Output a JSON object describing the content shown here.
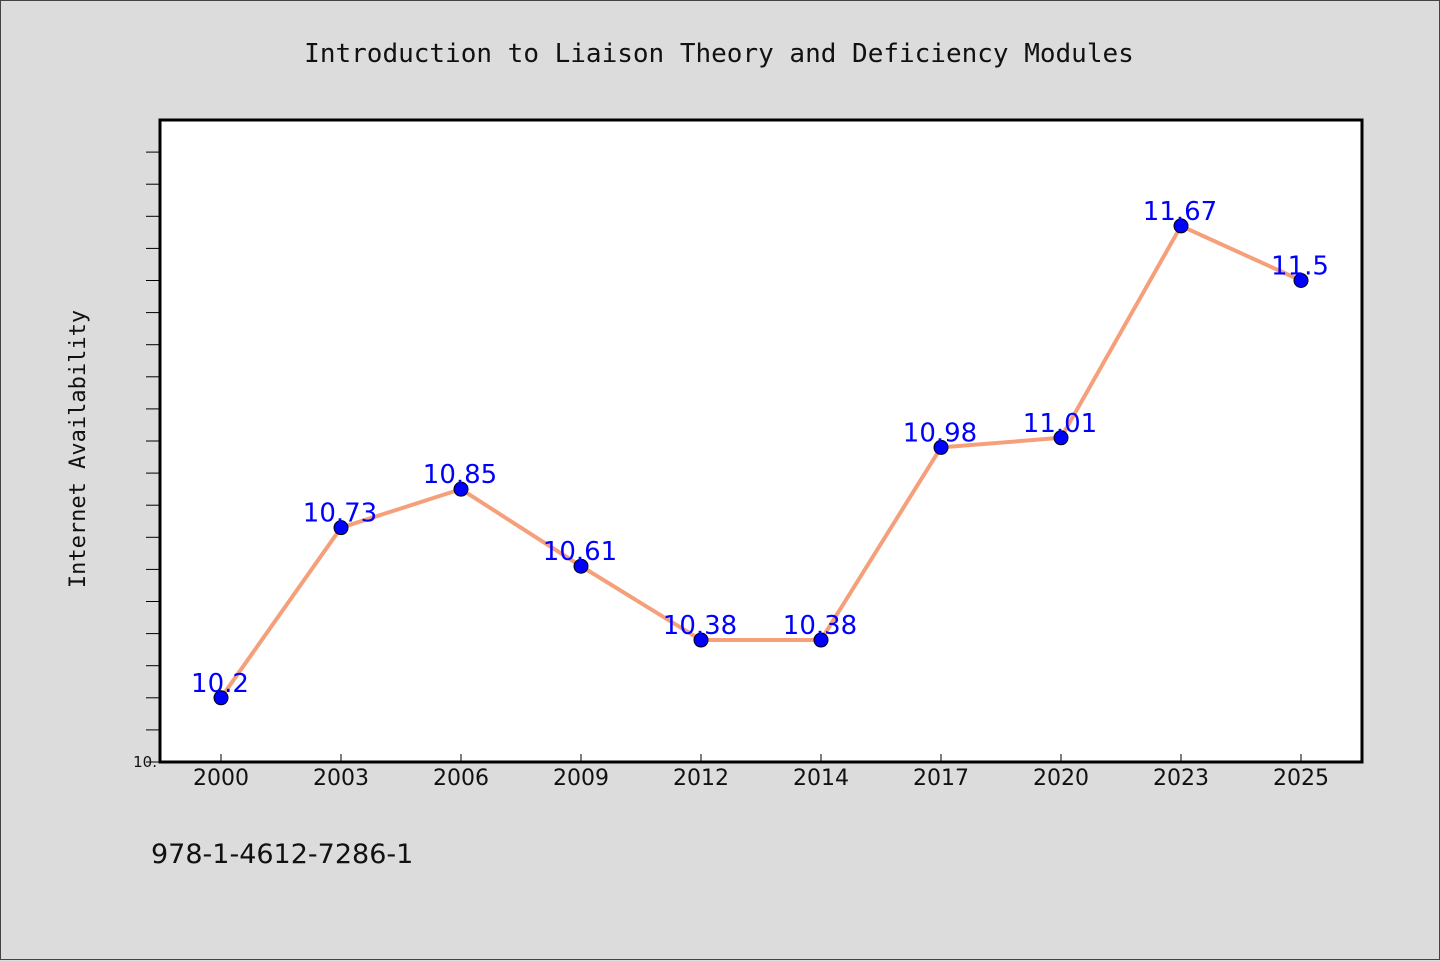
{
  "colors": {
    "background": "#dcdcdc",
    "plot_background": "#ffffff",
    "line": "#f5a07a",
    "marker": "#0000ff",
    "data_label": "#0000ff"
  },
  "footer": {
    "isbn": "978-1-4612-7286-1"
  },
  "chart_data": {
    "type": "line",
    "title": "Introduction to Liaison Theory and Deficiency Modules",
    "xlabel": "",
    "ylabel": "Internet Availability",
    "categories": [
      "2000",
      "2003",
      "2006",
      "2009",
      "2012",
      "2014",
      "2017",
      "2020",
      "2023",
      "2025"
    ],
    "series": [
      {
        "values": [
          10.2,
          10.73,
          10.85,
          10.61,
          10.38,
          10.38,
          10.98,
          11.01,
          11.67,
          11.5
        ],
        "labels": [
          "10.2",
          "10.73",
          "10.85",
          "10.61",
          "10.38",
          "10.38",
          "10.98",
          "11.01",
          "11.67",
          "11.5"
        ]
      }
    ],
    "ylim": [
      10.0,
      12.0
    ],
    "y_tick_labels": [
      "10."
    ],
    "grid": false,
    "legend": "none"
  }
}
